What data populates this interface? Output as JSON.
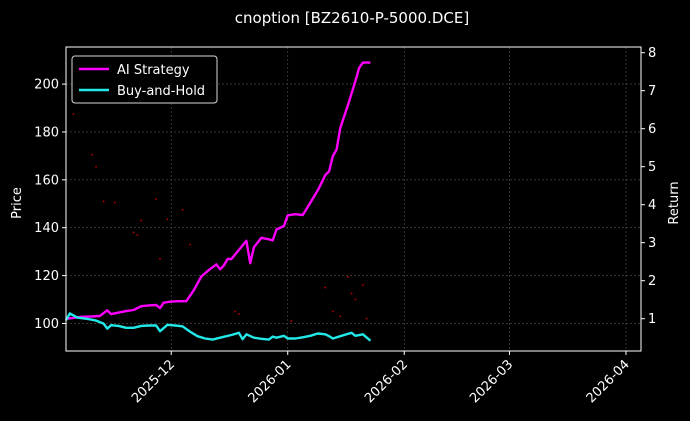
{
  "chart_data": {
    "type": "line",
    "title": "cnoption [BZ2610-P-5000.DCE]",
    "ylabel_left": "Price",
    "ylabel_right": "Return",
    "xlim": [
      "2025-11-03",
      "2026-04-05"
    ],
    "ylim_left": [
      88.5,
      215.5
    ],
    "ylim_right": [
      0.15,
      8.15
    ],
    "x_ticks": [
      {
        "date": "2025-12-01",
        "label": "2025-12"
      },
      {
        "date": "2026-01-01",
        "label": "2026-01"
      },
      {
        "date": "2026-02-01",
        "label": "2026-02"
      },
      {
        "date": "2026-03-01",
        "label": "2026-03"
      },
      {
        "date": "2026-04-01",
        "label": "2026-04"
      }
    ],
    "y_ticks_left": [
      100,
      120,
      140,
      160,
      180,
      200
    ],
    "y_ticks_right": [
      1,
      2,
      3,
      4,
      5,
      6,
      7,
      8
    ],
    "grid": true,
    "legend_position": "top-left",
    "series": [
      {
        "name": "AI Strategy",
        "axis": "right",
        "color": "#ff00ff",
        "points": [
          [
            "2025-11-03",
            1.0
          ],
          [
            "2025-11-05",
            1.02
          ],
          [
            "2025-11-07",
            1.05
          ],
          [
            "2025-11-10",
            1.06
          ],
          [
            "2025-11-12",
            1.07
          ],
          [
            "2025-11-14",
            1.22
          ],
          [
            "2025-11-15",
            1.12
          ],
          [
            "2025-11-17",
            1.16
          ],
          [
            "2025-11-19",
            1.2
          ],
          [
            "2025-11-21",
            1.23
          ],
          [
            "2025-11-23",
            1.33
          ],
          [
            "2025-11-25",
            1.35
          ],
          [
            "2025-11-27",
            1.36
          ],
          [
            "2025-11-28",
            1.28
          ],
          [
            "2025-11-29",
            1.42
          ],
          [
            "2025-12-01",
            1.45
          ],
          [
            "2025-12-03",
            1.46
          ],
          [
            "2025-12-05",
            1.46
          ],
          [
            "2025-12-07",
            1.75
          ],
          [
            "2025-12-09",
            2.11
          ],
          [
            "2025-12-11",
            2.28
          ],
          [
            "2025-12-13",
            2.43
          ],
          [
            "2025-12-14",
            2.3
          ],
          [
            "2025-12-15",
            2.4
          ],
          [
            "2025-12-16",
            2.57
          ],
          [
            "2025-12-17",
            2.57
          ],
          [
            "2025-12-19",
            2.81
          ],
          [
            "2025-12-21",
            3.05
          ],
          [
            "2025-12-22",
            2.46
          ],
          [
            "2025-12-23",
            2.88
          ],
          [
            "2025-12-25",
            3.13
          ],
          [
            "2025-12-27",
            3.09
          ],
          [
            "2025-12-28",
            3.06
          ],
          [
            "2025-12-29",
            3.35
          ],
          [
            "2025-12-31",
            3.44
          ],
          [
            "2026-01-01",
            3.72
          ],
          [
            "2026-01-03",
            3.75
          ],
          [
            "2026-01-05",
            3.73
          ],
          [
            "2026-01-07",
            4.05
          ],
          [
            "2026-01-09",
            4.38
          ],
          [
            "2026-01-11",
            4.78
          ],
          [
            "2026-01-12",
            4.88
          ],
          [
            "2026-01-13",
            5.28
          ],
          [
            "2026-01-14",
            5.45
          ],
          [
            "2026-01-15",
            6.02
          ],
          [
            "2026-01-17",
            6.62
          ],
          [
            "2026-01-19",
            7.25
          ],
          [
            "2026-01-20",
            7.6
          ],
          [
            "2026-01-21",
            7.74
          ],
          [
            "2026-01-23",
            7.74
          ]
        ]
      },
      {
        "name": "Buy-and-Hold",
        "axis": "right",
        "color": "#22e8e8",
        "points": [
          [
            "2025-11-03",
            0.96
          ],
          [
            "2025-11-04",
            1.14
          ],
          [
            "2025-11-06",
            1.03
          ],
          [
            "2025-11-09",
            0.99
          ],
          [
            "2025-11-11",
            0.95
          ],
          [
            "2025-11-13",
            0.87
          ],
          [
            "2025-11-14",
            0.74
          ],
          [
            "2025-11-15",
            0.83
          ],
          [
            "2025-11-17",
            0.81
          ],
          [
            "2025-11-19",
            0.76
          ],
          [
            "2025-11-21",
            0.76
          ],
          [
            "2025-11-23",
            0.81
          ],
          [
            "2025-11-25",
            0.82
          ],
          [
            "2025-11-27",
            0.82
          ],
          [
            "2025-11-28",
            0.67
          ],
          [
            "2025-11-30",
            0.84
          ],
          [
            "2025-12-02",
            0.82
          ],
          [
            "2025-12-04",
            0.8
          ],
          [
            "2025-12-06",
            0.66
          ],
          [
            "2025-12-08",
            0.54
          ],
          [
            "2025-12-10",
            0.48
          ],
          [
            "2025-12-12",
            0.45
          ],
          [
            "2025-12-14",
            0.5
          ],
          [
            "2025-12-17",
            0.57
          ],
          [
            "2025-12-19",
            0.63
          ],
          [
            "2025-12-20",
            0.46
          ],
          [
            "2025-12-21",
            0.59
          ],
          [
            "2025-12-23",
            0.5
          ],
          [
            "2025-12-25",
            0.47
          ],
          [
            "2025-12-27",
            0.45
          ],
          [
            "2025-12-28",
            0.53
          ],
          [
            "2025-12-29",
            0.5
          ],
          [
            "2025-12-31",
            0.55
          ],
          [
            "2026-01-01",
            0.48
          ],
          [
            "2026-01-03",
            0.48
          ],
          [
            "2026-01-05",
            0.51
          ],
          [
            "2026-01-07",
            0.55
          ],
          [
            "2026-01-09",
            0.61
          ],
          [
            "2026-01-11",
            0.59
          ],
          [
            "2026-01-12",
            0.54
          ],
          [
            "2026-01-13",
            0.48
          ],
          [
            "2026-01-15",
            0.54
          ],
          [
            "2026-01-17",
            0.6
          ],
          [
            "2026-01-18",
            0.63
          ],
          [
            "2026-01-19",
            0.55
          ],
          [
            "2026-01-21",
            0.59
          ],
          [
            "2026-01-23",
            0.42
          ]
        ]
      },
      {
        "name": "",
        "axis": "left",
        "color": "#c00000",
        "style": "scatter",
        "points": [
          [
            "2025-11-05",
            187.5
          ],
          [
            "2025-11-10",
            170.5
          ],
          [
            "2025-11-11",
            165.5
          ],
          [
            "2025-11-13",
            151.0
          ],
          [
            "2025-11-16",
            150.5
          ],
          [
            "2025-11-21",
            138.0
          ],
          [
            "2025-11-22",
            137.0
          ],
          [
            "2025-11-23",
            143.0
          ],
          [
            "2025-11-27",
            152.0
          ],
          [
            "2025-11-28",
            127.0
          ],
          [
            "2025-11-30",
            143.5
          ],
          [
            "2025-12-04",
            147.5
          ],
          [
            "2025-12-06",
            133.0
          ],
          [
            "2025-12-18",
            105.0
          ],
          [
            "2025-12-19",
            104.0
          ],
          [
            "2026-01-02",
            101.0
          ],
          [
            "2026-01-11",
            115.0
          ],
          [
            "2026-01-13",
            105.0
          ],
          [
            "2026-01-15",
            103.0
          ],
          [
            "2026-01-17",
            119.5
          ],
          [
            "2026-01-18",
            112.5
          ],
          [
            "2026-01-19",
            110.0
          ],
          [
            "2026-01-21",
            116.0
          ],
          [
            "2026-01-22",
            102.0
          ]
        ]
      }
    ]
  }
}
